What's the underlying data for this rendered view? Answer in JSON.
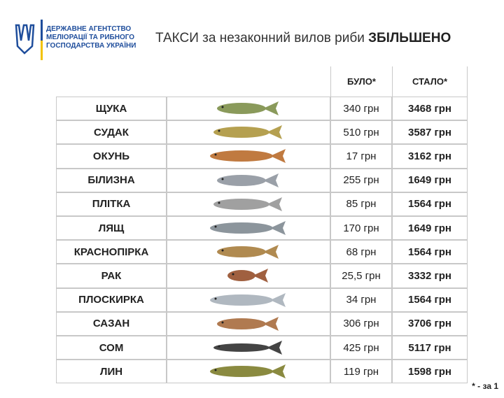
{
  "header": {
    "agency": [
      "ДЕРЖАВНЕ АГЕНТСТВО",
      "МЕЛІОРАЦІЇ ТА РИБНОГО",
      "ГОСПОДАРСТВА УКРАЇНИ"
    ],
    "title": "ТАКСИ за незаконний вилов риби",
    "title_emphasis": "ЗБІЛЬШЕНО"
  },
  "table": {
    "columns": [
      "БУЛО*",
      "СТАЛО*"
    ],
    "rows": [
      [
        "ЩУКА",
        "340 грн",
        "3468 грн"
      ],
      [
        "СУДАК",
        "510 грн",
        "3587 грн"
      ],
      [
        "ОКУНЬ",
        "17 грн",
        "3162 грн"
      ],
      [
        "БІЛИЗНА",
        "255 грн",
        "1649 грн"
      ],
      [
        "ПЛІТКА",
        "85 грн",
        "1564 грн"
      ],
      [
        "ЛЯЩ",
        "170 грн",
        "1649 грн"
      ],
      [
        "КРАСНОПІРКА",
        "68 грн",
        "1564 грн"
      ],
      [
        "РАК",
        "25,5 грн",
        "3332 грн"
      ],
      [
        "ПЛОСКИРКА",
        "34 грн",
        "1564 грн"
      ],
      [
        "САЗАН",
        "306 грн",
        "3706 грн"
      ],
      [
        "СОМ",
        "425 грн",
        "5117 грн"
      ],
      [
        "ЛИН",
        "119 грн",
        "1598 грн"
      ]
    ]
  },
  "footnote": "* - за 1"
}
